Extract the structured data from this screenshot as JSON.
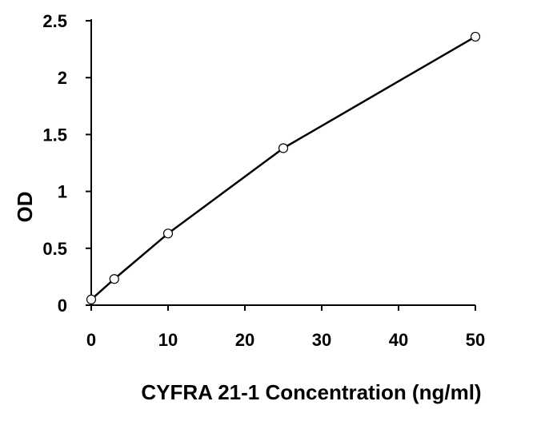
{
  "chart_data": {
    "type": "scatter",
    "title": "",
    "xlabel": "CYFRA 21-1 Concentration (ng/ml)",
    "ylabel": "OD",
    "xlim": [
      0,
      50
    ],
    "ylim": [
      0,
      2.5
    ],
    "xticks": [
      0,
      10,
      20,
      30,
      40,
      50
    ],
    "yticks": [
      0,
      0.5,
      1,
      1.5,
      2,
      2.5
    ],
    "xtick_labels": [
      "0",
      "10",
      "20",
      "30",
      "40",
      "50"
    ],
    "ytick_labels": [
      "0",
      "0.5",
      "1",
      "1.5",
      "2",
      "2.5"
    ],
    "grid": false,
    "legend": "none",
    "line_connected": true,
    "colors": {
      "line": "#000000",
      "marker_fill": "#ffffff",
      "marker_stroke": "#000000",
      "axis": "#000000",
      "background": "#ffffff"
    },
    "series": [
      {
        "x": [
          0,
          3,
          10,
          25,
          50
        ],
        "y": [
          0.05,
          0.23,
          0.63,
          1.38,
          2.36
        ]
      }
    ]
  }
}
